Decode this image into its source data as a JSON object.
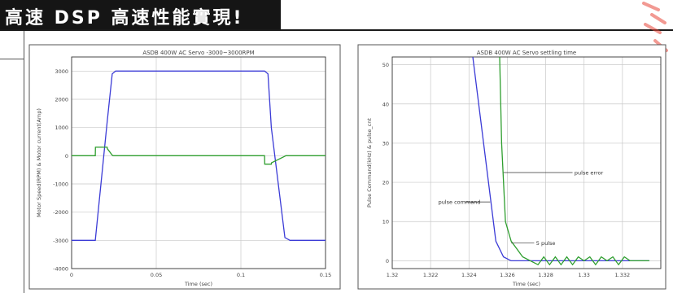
{
  "banner": {
    "title": "高速 DSP 高速性能實現!"
  },
  "colors": {
    "banner_bg": "#151515",
    "speed_line": "#3b3bd6",
    "current_line": "#2e9e2e",
    "watermark": "#e8473a"
  },
  "chart_data": [
    {
      "type": "line",
      "title": "ASDB 400W AC Servo -3000~3000RPM",
      "xlabel": "Time (sec)",
      "ylabel": "Motor Speed(RPM) & Motor current(Amp)",
      "xlim": [
        0,
        0.15
      ],
      "ylim": [
        -4000,
        3500
      ],
      "grid": true,
      "x_ticks": [
        "0",
        "0.05",
        "0.1",
        "0.15"
      ],
      "y_ticks": [
        "3000",
        "2000",
        "1000",
        "0",
        "-1000",
        "-2000",
        "-3000",
        "-4000"
      ],
      "series": [
        {
          "color": "#3b3bd6",
          "x": [
            0,
            0.014,
            0.021,
            0.024,
            0.026,
            0.05,
            0.1,
            0.114,
            0.116,
            0.118,
            0.126,
            0.129,
            0.15
          ],
          "y": [
            -3000,
            -3000,
            1200,
            2900,
            3000,
            3000,
            3000,
            3000,
            2900,
            1000,
            -2900,
            -3000,
            -3000
          ]
        },
        {
          "color": "#2e9e2e",
          "x": [
            0,
            0.014,
            0.0141,
            0.021,
            0.0211,
            0.024,
            0.0245,
            0.05,
            0.1,
            0.114,
            0.1141,
            0.118,
            0.1181,
            0.126,
            0.1265,
            0.15
          ],
          "y": [
            0,
            0,
            300,
            300,
            250,
            20,
            0,
            0,
            0,
            0,
            -300,
            -300,
            -250,
            -20,
            0,
            0
          ]
        }
      ]
    },
    {
      "type": "line",
      "title": "ASDB 400W AC Servo settling time",
      "xlabel": "Time (sec)",
      "ylabel": "Pulse Command(kHz) & pulse_cnt",
      "xlim": [
        1.32,
        1.334
      ],
      "ylim": [
        -2,
        52
      ],
      "grid": true,
      "x_ticks": [
        "1.32",
        "1.322",
        "1.324",
        "1.326",
        "1.328",
        "1.33",
        "1.332"
      ],
      "y_ticks": [
        "50",
        "40",
        "30",
        "20",
        "10",
        "0"
      ],
      "annotations": [
        {
          "text": "pulse error",
          "x": 1.3295,
          "y": 22.5
        },
        {
          "text": "pulse command",
          "x": 1.3224,
          "y": 15
        },
        {
          "text": "5 pulse",
          "x": 1.3275,
          "y": 4.5
        }
      ],
      "series": [
        {
          "color": "#3b3bd6",
          "x": [
            1.3242,
            1.3254,
            1.3258,
            1.3262,
            1.3334
          ],
          "y": [
            52,
            5,
            1,
            0,
            0
          ]
        },
        {
          "color": "#2e9e2e",
          "x": [
            1.3256,
            1.3257,
            1.3259,
            1.3262,
            1.3265,
            1.3268,
            1.3272,
            1.3276,
            1.3279,
            1.3282,
            1.3285,
            1.3288,
            1.3291,
            1.3294,
            1.3297,
            1.33,
            1.3303,
            1.3306,
            1.3309,
            1.3312,
            1.3315,
            1.3318,
            1.3321,
            1.3324,
            1.3334
          ],
          "y": [
            52,
            30,
            10,
            5,
            3,
            1,
            0,
            -1,
            1,
            -1,
            1,
            -1,
            1,
            -1,
            1,
            0,
            1,
            -1,
            1,
            0,
            1,
            -1,
            1,
            0,
            0
          ]
        }
      ]
    }
  ]
}
